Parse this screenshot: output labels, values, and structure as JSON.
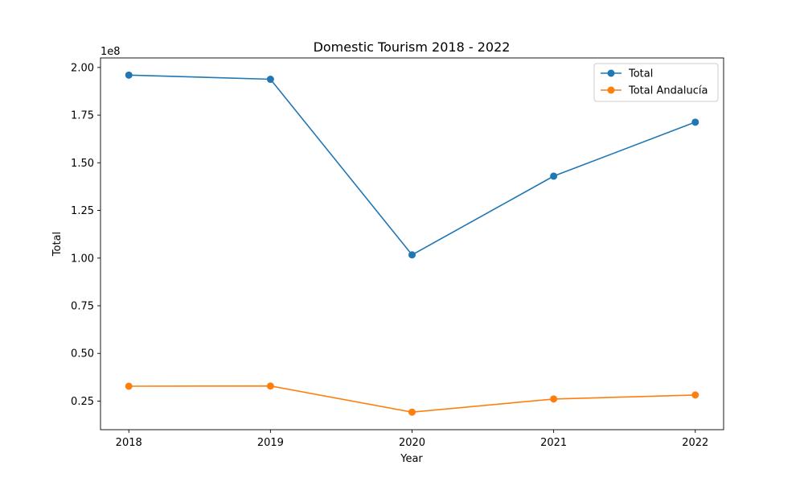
{
  "chart_data": {
    "type": "line",
    "title": "Domestic Tourism 2018 - 2022",
    "xlabel": "Year",
    "ylabel": "Total",
    "y_offset_label": "1e8",
    "x": [
      2018,
      2019,
      2020,
      2021,
      2022
    ],
    "x_ticks": [
      "2018",
      "2019",
      "2020",
      "2021",
      "2022"
    ],
    "y_ticks": [
      25000000,
      50000000,
      75000000,
      100000000,
      125000000,
      150000000,
      175000000,
      200000000
    ],
    "y_tick_labels": [
      "0.25",
      "0.50",
      "0.75",
      "1.00",
      "1.25",
      "1.50",
      "1.75",
      "2.00"
    ],
    "ylim": [
      10000000,
      205000000
    ],
    "grid": false,
    "legend_position": "top-right",
    "series": [
      {
        "name": "Total",
        "color": "#1f77b4",
        "values": [
          196000000,
          193800000,
          101700000,
          143000000,
          171300000
        ]
      },
      {
        "name": "Total Andalucía",
        "color": "#ff7f0e",
        "values": [
          32800000,
          32900000,
          19200000,
          26100000,
          28200000
        ]
      }
    ]
  }
}
